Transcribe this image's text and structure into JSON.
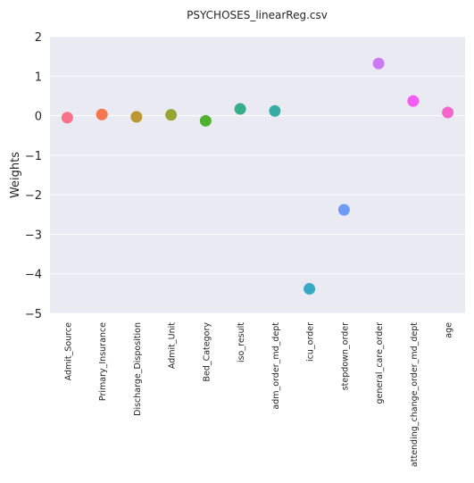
{
  "chart_data": {
    "type": "scatter",
    "title": "PSYCHOSES_linearReg.csv",
    "xlabel": "",
    "ylabel": "Weights",
    "ylim": [
      -5,
      2
    ],
    "yticks": [
      2,
      1,
      0,
      -1,
      -2,
      -3,
      -4,
      -5
    ],
    "ytick_labels": [
      "2",
      "1",
      "0",
      "−1",
      "−2",
      "−3",
      "−4",
      "−5"
    ],
    "grid": true,
    "legend": "none",
    "background": "#eaeaf2",
    "categories": [
      "Admit_Source",
      "Primary_Insurance",
      "Discharge_Disposition",
      "Admit_Unit",
      "Bed_Category",
      "iso_result",
      "adm_order_md_dept",
      "icu_order",
      "stepdown_order",
      "general_care_order",
      "attending_change_order_md_dept",
      "age"
    ],
    "values": [
      -0.05,
      0.03,
      -0.03,
      0.02,
      -0.13,
      0.17,
      0.12,
      -4.38,
      -2.38,
      1.32,
      0.37,
      0.08
    ],
    "colors": [
      "#f77189",
      "#f7754f",
      "#bb9832",
      "#97a431",
      "#50b131",
      "#34af8a",
      "#36ada4",
      "#38a9c5",
      "#6e9bf4",
      "#cc7af4",
      "#f45cf2",
      "#f565cc"
    ]
  }
}
